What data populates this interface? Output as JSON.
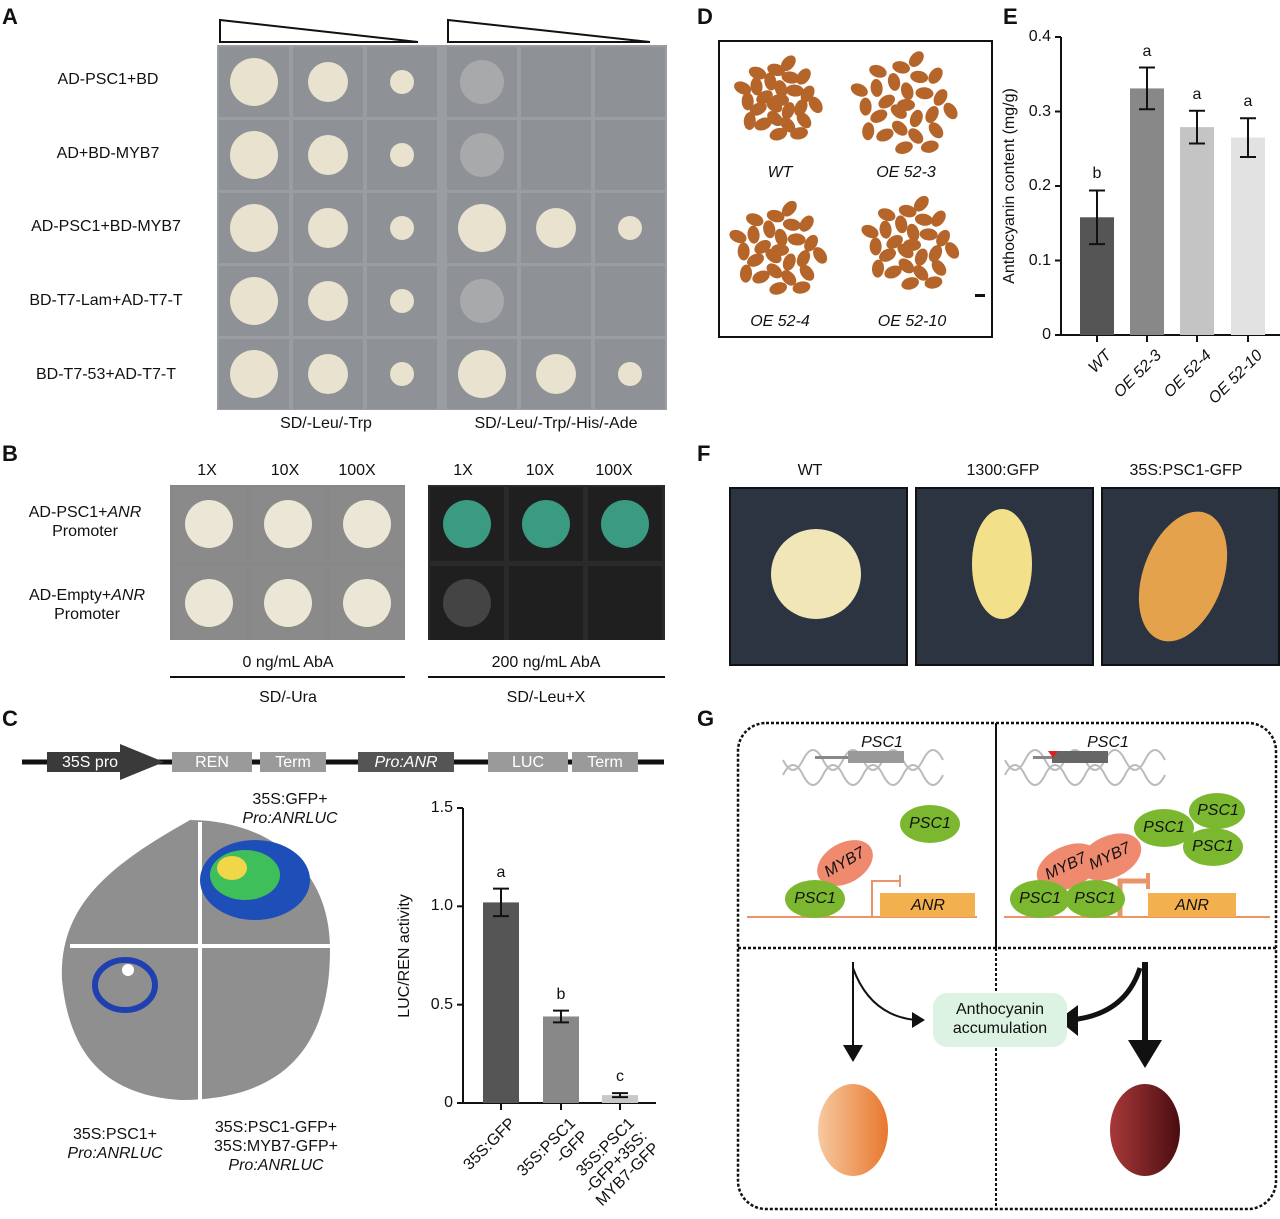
{
  "panel_labels": [
    "A",
    "B",
    "C",
    "D",
    "E",
    "F",
    "G"
  ],
  "A": {
    "rows": [
      "AD-PSC1+BD",
      "AD+BD-MYB7",
      "AD-PSC1+BD-MYB7",
      "BD-T7-Lam+AD-T7-T",
      "BD-T7-53+AD-T7-T"
    ],
    "media": [
      "SD/-Leu/-Trp",
      "SD/-Leu/-Trp/-His/-Ade"
    ]
  },
  "B": {
    "dilutions": [
      "1X",
      "10X",
      "100X"
    ],
    "rows": [
      {
        "pre": "AD-PSC1+",
        "gene": "ANR",
        "post": "Promoter"
      },
      {
        "pre": "AD-Empty+",
        "gene": "ANR",
        "post": "Promoter"
      }
    ],
    "conditions": [
      "0 ng/mL AbA",
      "200 ng/mL AbA"
    ],
    "media": [
      "SD/-Ura",
      "SD/-Leu+X"
    ]
  },
  "C": {
    "construct": [
      "35S pro",
      "REN",
      "Term",
      "Pro:ANR",
      "LUC",
      "Term"
    ],
    "leaf_labels": {
      "top_right": [
        "35S:GFP+",
        "Pro:ANRLUC"
      ],
      "bottom_left": [
        "35S:PSC1+",
        "Pro:ANRLUC"
      ],
      "bottom_right": [
        "35S:PSC1-GFP+",
        "35S:MYB7-GFP+",
        "Pro:ANRLUC"
      ]
    }
  },
  "D": {
    "labels": [
      "WT",
      "OE 52-3",
      "OE 52-4",
      "OE 52-10"
    ]
  },
  "F": {
    "labels": [
      "WT",
      "1300:GFP",
      "35S:PSC1-GFP"
    ]
  },
  "G": {
    "gene": "PSC1",
    "target": "ANR",
    "tf": "MYB7",
    "outcome": [
      "Anthocyanin",
      "accumulation"
    ],
    "colors": {
      "psc1": "#7cb82f",
      "myb7": "#f08a6e",
      "anr": "#f2b04e"
    }
  },
  "chart_data": [
    {
      "panel": "C",
      "type": "bar",
      "ylabel": "LUC/REN activity",
      "ylim": [
        0,
        1.5
      ],
      "yticks": [
        "0",
        "0.5",
        "1.0",
        "1.5"
      ],
      "categories": [
        "35S:GFP",
        "35S:PSC1\n-GFP",
        "35S:PSC1\n-GFP+35S:\nMYB7-GFP"
      ],
      "values": [
        1.02,
        0.44,
        0.04
      ],
      "errors": [
        0.07,
        0.03,
        0.01
      ],
      "letters": [
        "a",
        "b",
        "c"
      ],
      "colors": [
        "#555555",
        "#888888",
        "#c8c8c8"
      ]
    },
    {
      "panel": "E",
      "type": "bar",
      "ylabel": "Anthocyanin content (mg/g)",
      "ylim": [
        0,
        0.4
      ],
      "yticks": [
        "0",
        "0.1",
        "0.2",
        "0.3",
        "0.4"
      ],
      "categories": [
        "WT",
        "OE 52-3",
        "OE 52-4",
        "OE 52-10"
      ],
      "values": [
        0.158,
        0.331,
        0.279,
        0.265
      ],
      "errors": [
        0.036,
        0.028,
        0.022,
        0.026
      ],
      "letters": [
        "b",
        "a",
        "a",
        "a"
      ],
      "colors": [
        "#555555",
        "#888888",
        "#c4c4c4",
        "#e2e2e2"
      ]
    }
  ]
}
